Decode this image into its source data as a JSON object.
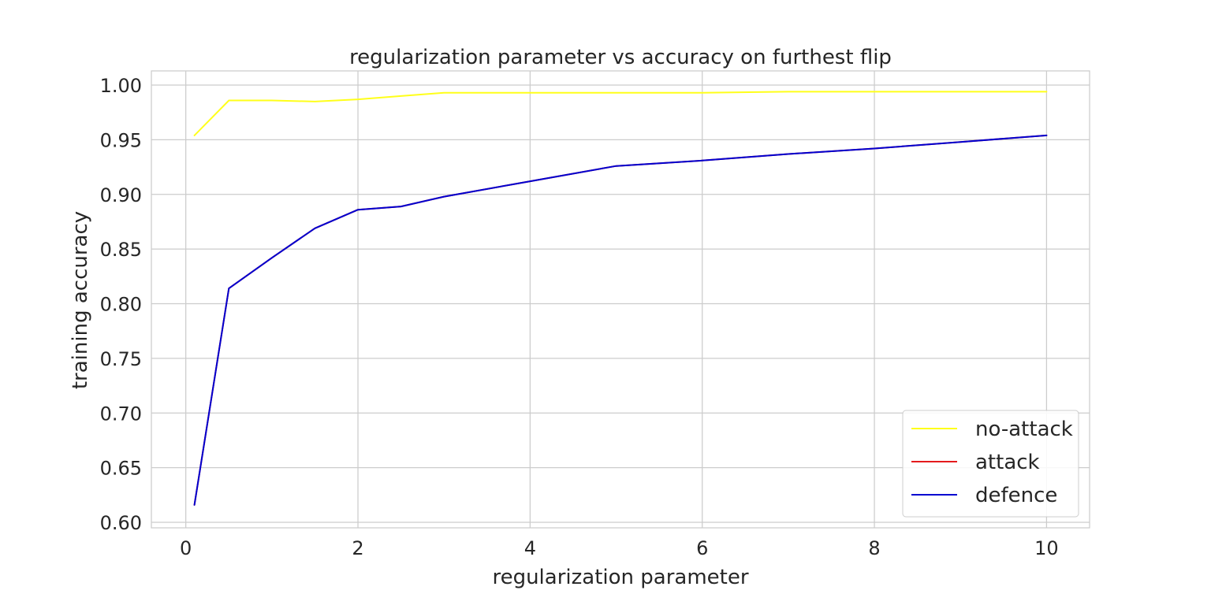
{
  "chart_data": {
    "type": "line",
    "title": "regularization parameter vs accuracy on furthest flip",
    "xlabel": "regularization parameter",
    "ylabel": "training accuracy",
    "xlim": [
      -0.4,
      10.5
    ],
    "ylim": [
      0.595,
      1.013
    ],
    "x_ticks": [
      0,
      2,
      4,
      6,
      8,
      10
    ],
    "x_tick_labels": [
      "0",
      "2",
      "4",
      "6",
      "8",
      "10"
    ],
    "y_ticks": [
      0.6,
      0.65,
      0.7,
      0.75,
      0.8,
      0.85,
      0.9,
      0.95,
      1.0
    ],
    "y_tick_labels": [
      "0.60",
      "0.65",
      "0.70",
      "0.75",
      "0.80",
      "0.85",
      "0.90",
      "0.95",
      "1.00"
    ],
    "grid": true,
    "legend_position": "bottom-right",
    "x": [
      0.1,
      0.5,
      1,
      1.5,
      2,
      2.5,
      3,
      4,
      5,
      6,
      7,
      8,
      9,
      10
    ],
    "series": [
      {
        "name": "no-attack",
        "color": "#ffff1a",
        "values": [
          0.954,
          0.986,
          0.986,
          0.985,
          0.987,
          0.99,
          0.993,
          0.993,
          0.993,
          0.993,
          0.994,
          0.994,
          0.994,
          0.994
        ]
      },
      {
        "name": "attack",
        "color": "#e41a1c",
        "values": [
          0.616,
          0.814,
          0.842,
          0.869,
          0.886,
          0.889,
          0.898,
          0.912,
          0.926,
          0.931,
          0.937,
          0.942,
          0.948,
          0.954
        ]
      },
      {
        "name": "defence",
        "color": "#0000d0",
        "values": [
          0.616,
          0.814,
          0.842,
          0.869,
          0.886,
          0.889,
          0.898,
          0.912,
          0.926,
          0.931,
          0.937,
          0.942,
          0.948,
          0.954
        ]
      }
    ]
  }
}
